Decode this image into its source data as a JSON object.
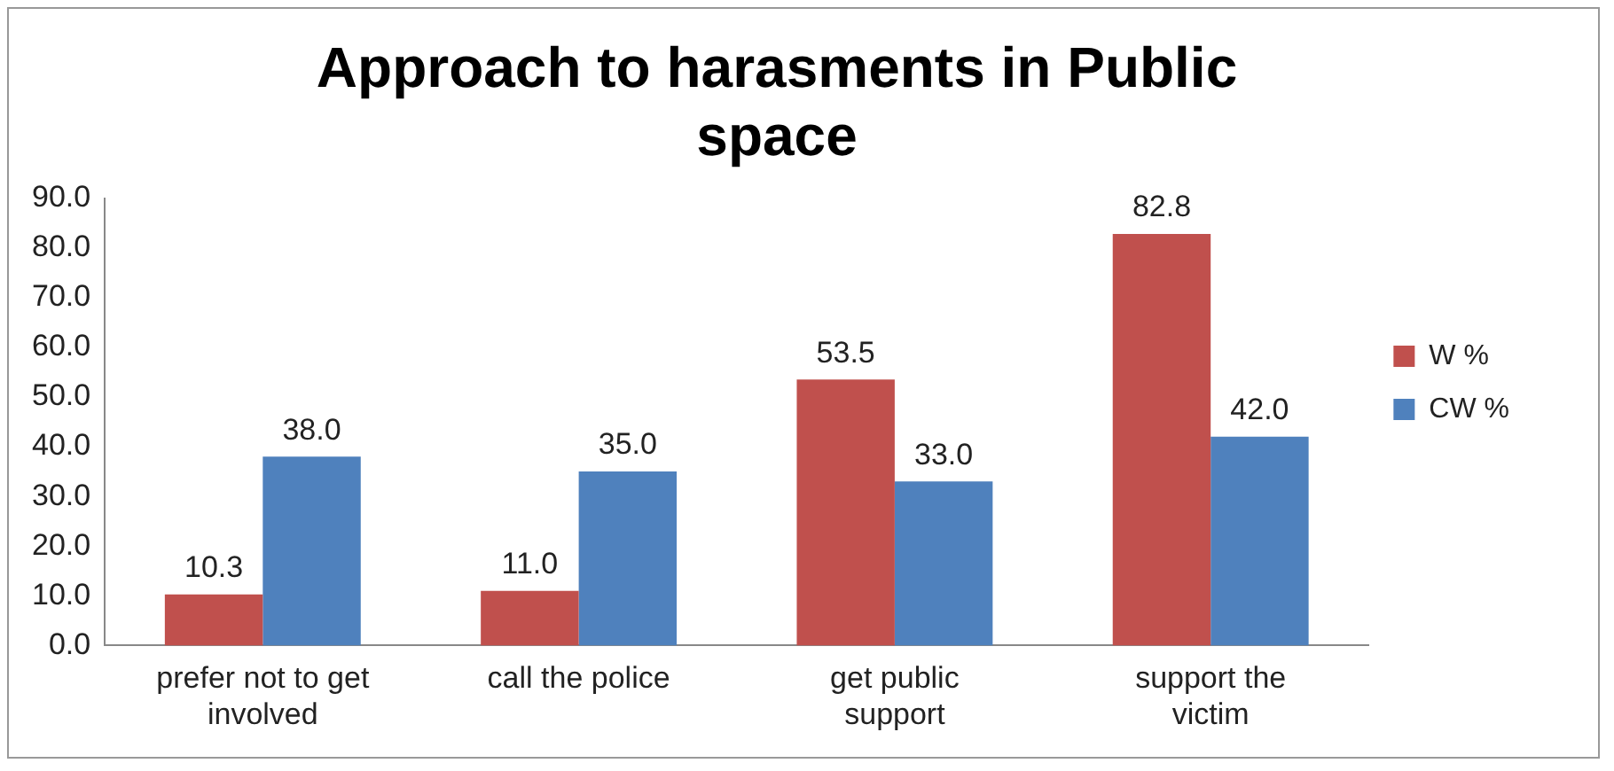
{
  "chart_data": {
    "type": "bar",
    "title": "Approach to harasments in Public space",
    "categories": [
      "prefer not to get involved",
      "call the police",
      "get public support",
      "support the victim"
    ],
    "series": [
      {
        "name": "W %",
        "color": "#c0504d",
        "values": [
          10.3,
          11.0,
          53.5,
          82.8
        ],
        "value_labels": [
          "10.3",
          "11.0",
          "53.5",
          "82.8"
        ]
      },
      {
        "name": "CW %",
        "color": "#4f81bd",
        "values": [
          38.0,
          35.0,
          33.0,
          42.0
        ],
        "value_labels": [
          "38.0",
          "35.0",
          "33.0",
          "42.0"
        ]
      }
    ],
    "ylim": [
      0,
      90
    ],
    "yticks": [
      {
        "value": 0,
        "label": "0.0"
      },
      {
        "value": 10,
        "label": "10.0"
      },
      {
        "value": 20,
        "label": "20.0"
      },
      {
        "value": 30,
        "label": "30.0"
      },
      {
        "value": 40,
        "label": "40.0"
      },
      {
        "value": 50,
        "label": "50.0"
      },
      {
        "value": 60,
        "label": "60.0"
      },
      {
        "value": 70,
        "label": "70.0"
      },
      {
        "value": 80,
        "label": "80.0"
      },
      {
        "value": 90,
        "label": "90.0"
      }
    ],
    "grid": false,
    "legend": "right"
  }
}
